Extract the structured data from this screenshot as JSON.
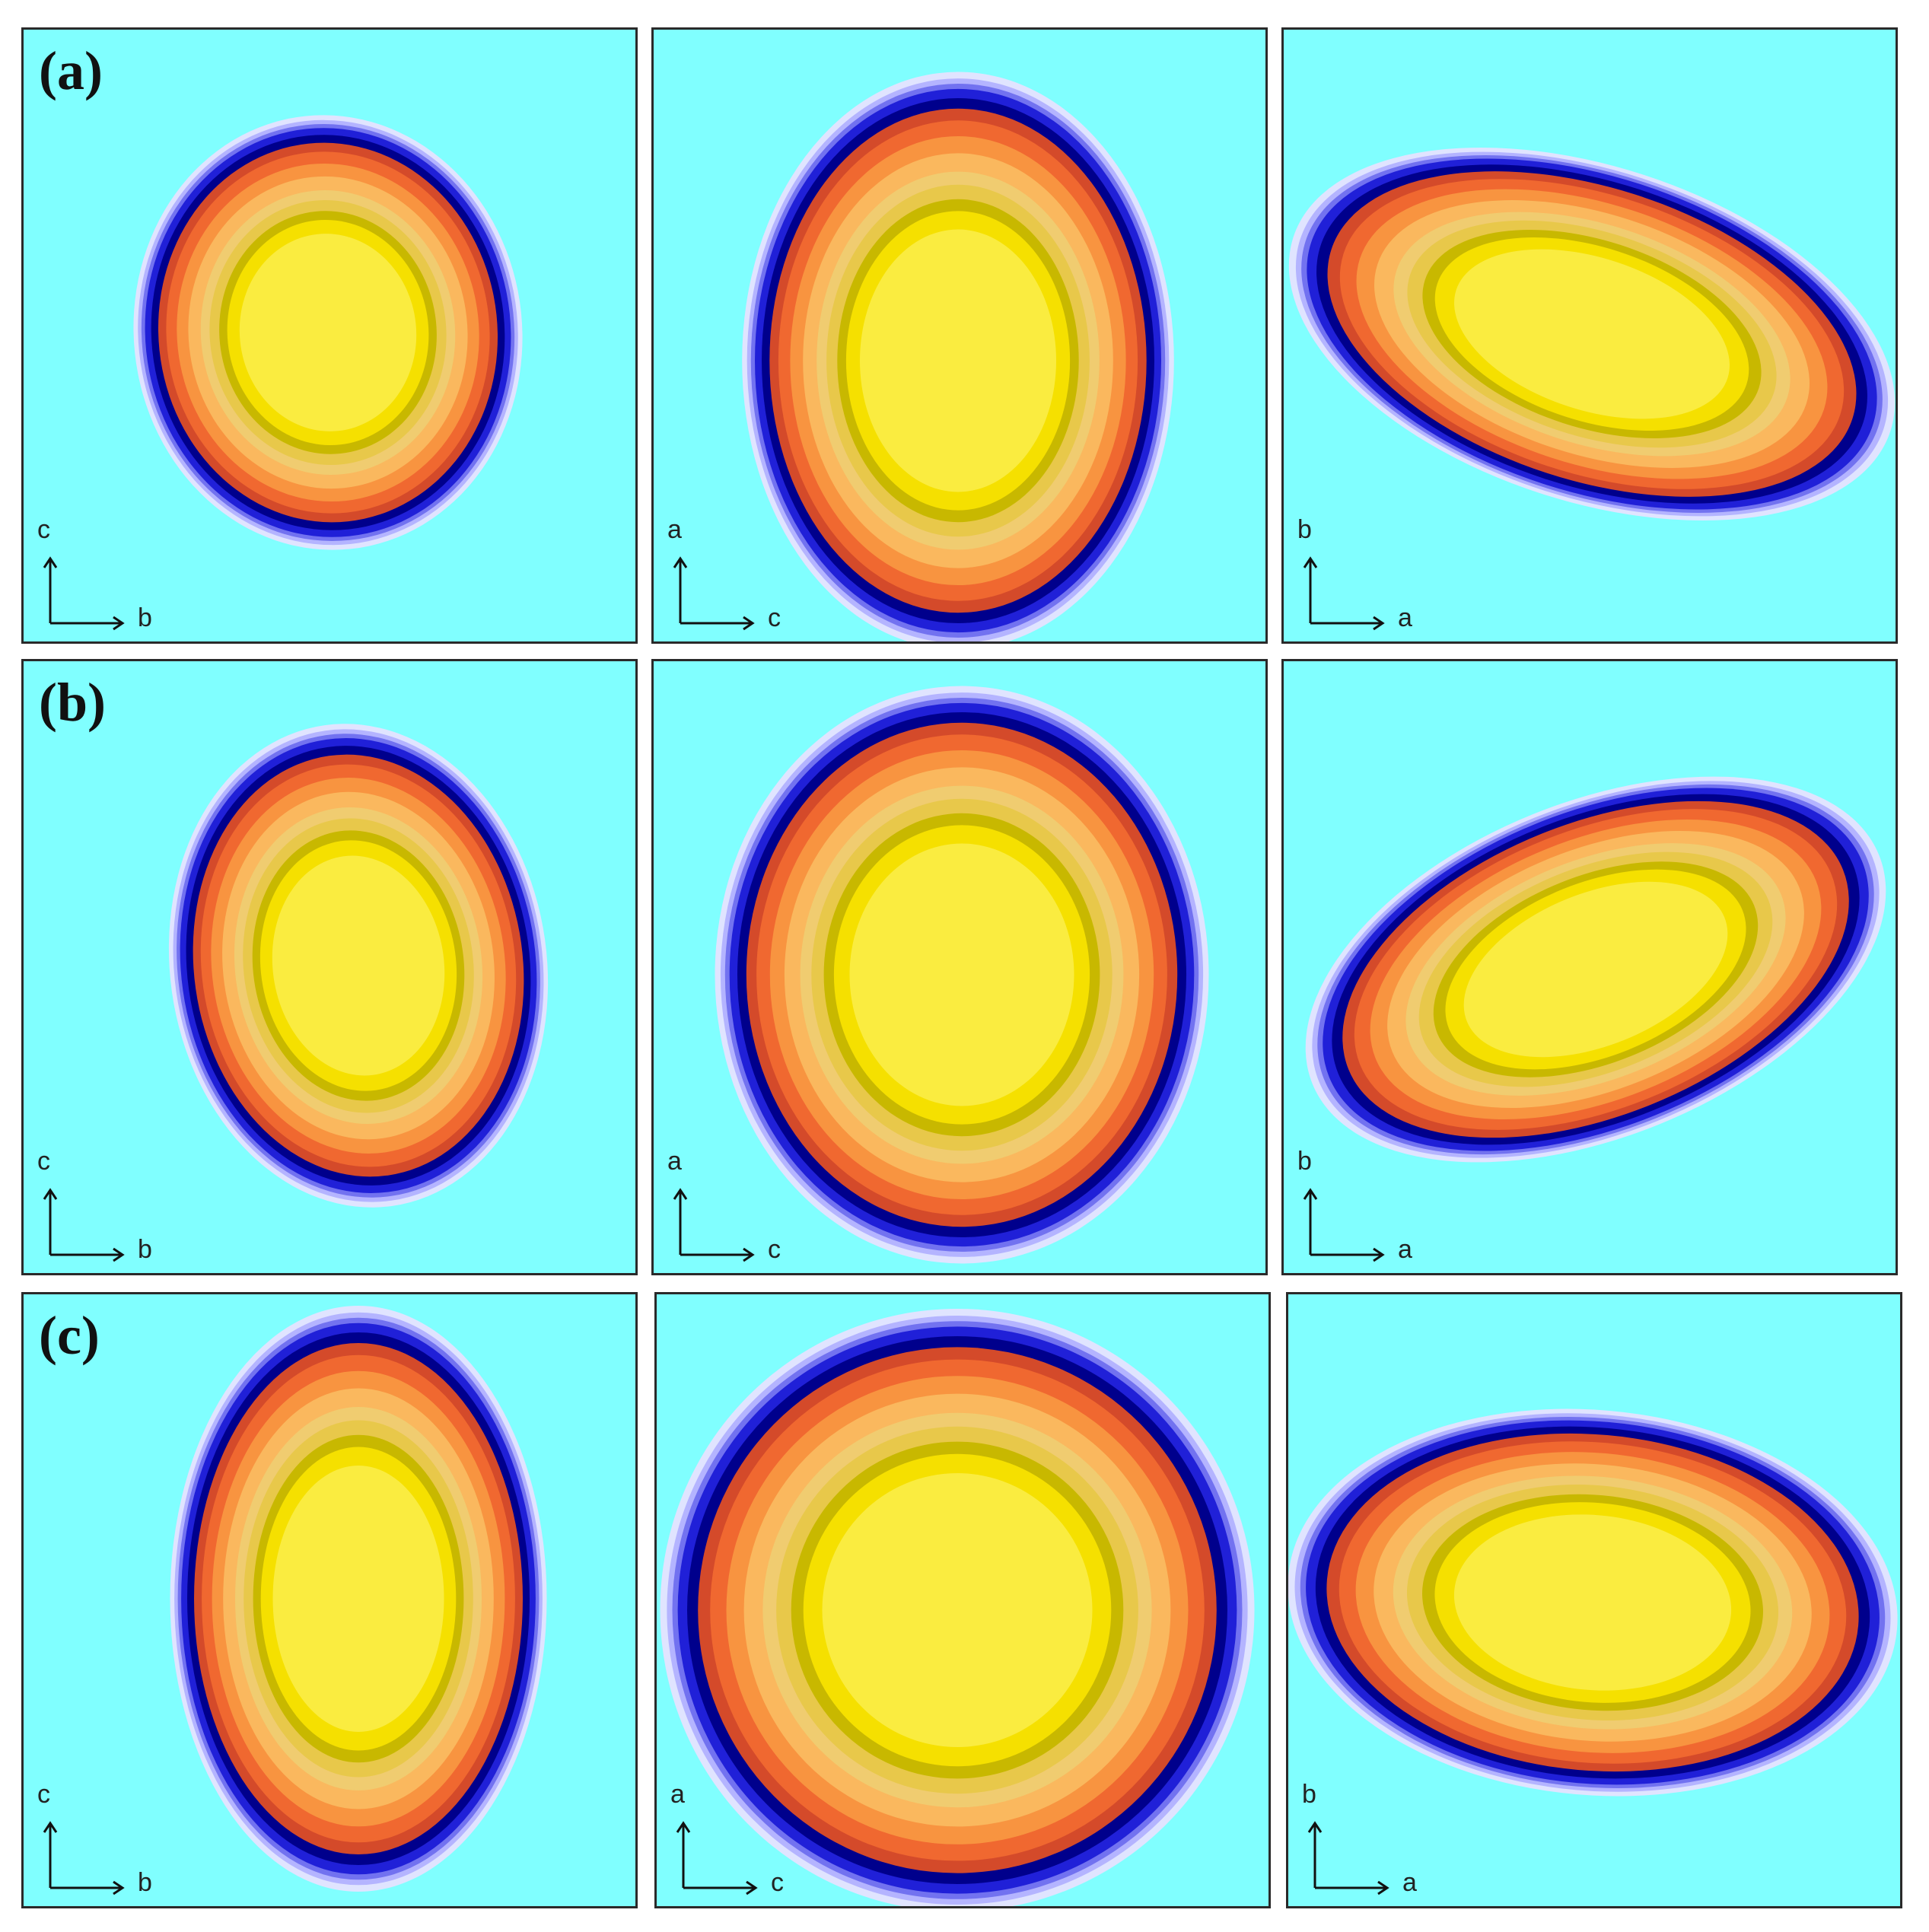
{
  "figure": {
    "rows": [
      {
        "label": "(a)",
        "panels": [
          {
            "shape": "p1",
            "vertical_axis": "c",
            "horizontal_axis": "b"
          },
          {
            "shape": "p2",
            "vertical_axis": "a",
            "horizontal_axis": "c"
          },
          {
            "shape": "p3",
            "vertical_axis": "b",
            "horizontal_axis": "a"
          }
        ]
      },
      {
        "label": "(b)",
        "panels": [
          {
            "shape": "p4",
            "vertical_axis": "c",
            "horizontal_axis": "b"
          },
          {
            "shape": "p5",
            "vertical_axis": "a",
            "horizontal_axis": "c"
          },
          {
            "shape": "p6",
            "vertical_axis": "b",
            "horizontal_axis": "a"
          }
        ]
      },
      {
        "label": "(c)",
        "panels": [
          {
            "shape": "p7",
            "vertical_axis": "c",
            "horizontal_axis": "b"
          },
          {
            "shape": "p8",
            "vertical_axis": "a",
            "horizontal_axis": "c"
          },
          {
            "shape": "p9",
            "vertical_axis": "b",
            "horizontal_axis": "a"
          }
        ]
      }
    ],
    "colors": {
      "background": "#80ffff",
      "bands": [
        "#e0e4ff",
        "#b4b4ff",
        "#7272f0",
        "#2020d8",
        "#00008c",
        "#d44a2a",
        "#f06830",
        "#f89440",
        "#fab85e",
        "#f0cc70",
        "#e8c84a",
        "#c8b800",
        "#f5e000",
        "#faec40"
      ]
    }
  }
}
